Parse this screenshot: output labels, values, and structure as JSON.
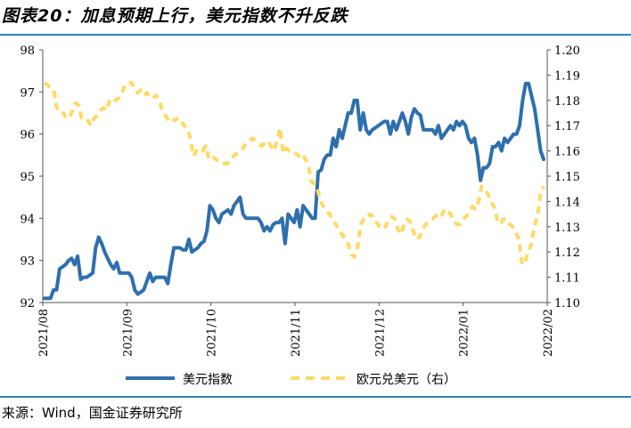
{
  "title": "图表20：加息预期上行，美元指数不升反跌",
  "source": "来源：Wind，国金证券研究所",
  "chart_data": {
    "type": "line",
    "x_ticks": [
      "2021/08",
      "2021/09",
      "2021/10",
      "2021/11",
      "2021/12",
      "2022/01",
      "2022/02"
    ],
    "left_axis": {
      "ylim": [
        92,
        98
      ],
      "ticks": [
        "98",
        "97",
        "96",
        "95",
        "94",
        "93",
        "92"
      ]
    },
    "right_axis": {
      "ylim": [
        1.1,
        1.2
      ],
      "ticks": [
        "1.20",
        "1.19",
        "1.18",
        "1.17",
        "1.16",
        "1.15",
        "1.14",
        "1.13",
        "1.12",
        "1.11",
        "1.10"
      ]
    },
    "grid": false,
    "legend_position": "bottom",
    "series": [
      {
        "name": "美元指数",
        "axis": "left",
        "color": "#2e6fad",
        "style": "solid",
        "values": [
          92.1,
          92.1,
          92.1,
          92.3,
          92.3,
          92.8,
          92.85,
          92.9,
          93.0,
          93.05,
          92.9,
          93.1,
          92.55,
          92.6,
          92.6,
          92.65,
          92.7,
          93.3,
          93.55,
          93.4,
          93.2,
          93.05,
          92.9,
          92.8,
          92.95,
          92.7,
          92.7,
          92.7,
          92.7,
          92.6,
          92.3,
          92.2,
          92.25,
          92.3,
          92.5,
          92.7,
          92.5,
          92.6,
          92.6,
          92.6,
          92.6,
          92.45,
          92.9,
          93.3,
          93.3,
          93.3,
          93.25,
          93.25,
          93.5,
          93.2,
          93.25,
          93.3,
          93.4,
          93.45,
          93.7,
          94.3,
          94.2,
          94.0,
          93.9,
          94.1,
          94.15,
          94.2,
          94.1,
          94.3,
          94.4,
          94.5,
          94.1,
          94.0,
          94.0,
          94.0,
          94.0,
          94.0,
          93.9,
          93.7,
          93.8,
          93.7,
          93.85,
          93.9,
          93.9,
          94.0,
          93.4,
          94.1,
          94.0,
          93.9,
          94.2,
          93.8,
          94.3,
          94.2,
          94.1,
          94.0,
          94.0,
          95.1,
          95.15,
          95.4,
          95.5,
          95.5,
          95.9,
          95.7,
          96.1,
          95.9,
          96.2,
          96.5,
          96.5,
          96.8,
          96.8,
          96.1,
          96.5,
          96.1,
          96.0,
          96.1,
          96.15,
          96.2,
          96.25,
          96.3,
          96.3,
          96.0,
          96.3,
          96.1,
          96.3,
          96.5,
          96.3,
          96.0,
          96.4,
          96.6,
          96.5,
          96.45,
          96.1,
          96.1,
          96.1,
          96.1,
          96.0,
          96.2,
          95.9,
          96.0,
          96.1,
          96.2,
          96.1,
          96.3,
          96.2,
          96.3,
          96.2,
          95.9,
          95.8,
          95.9,
          95.5,
          94.9,
          95.2,
          95.2,
          95.3,
          95.7,
          95.7,
          95.8,
          95.6,
          95.9,
          95.8,
          95.9,
          96.0,
          96.0,
          96.2,
          96.8,
          97.2,
          97.2,
          96.9,
          96.6,
          96.1,
          95.6,
          95.4
        ]
      },
      {
        "name": "欧元兑美元（右）",
        "axis": "right",
        "color": "#ffd965",
        "style": "dashed",
        "values": [
          1.187,
          1.186,
          1.185,
          1.184,
          1.177,
          1.175,
          1.175,
          1.173,
          1.173,
          1.176,
          1.179,
          1.178,
          1.173,
          1.173,
          1.172,
          1.17,
          1.173,
          1.174,
          1.176,
          1.177,
          1.176,
          1.18,
          1.181,
          1.18,
          1.181,
          1.183,
          1.186,
          1.187,
          1.187,
          1.185,
          1.183,
          1.184,
          1.182,
          1.183,
          1.181,
          1.181,
          1.182,
          1.18,
          1.176,
          1.174,
          1.172,
          1.173,
          1.172,
          1.173,
          1.172,
          1.17,
          1.169,
          1.165,
          1.158,
          1.16,
          1.161,
          1.16,
          1.162,
          1.157,
          1.158,
          1.157,
          1.156,
          1.155,
          1.155,
          1.155,
          1.156,
          1.158,
          1.159,
          1.16,
          1.161,
          1.163,
          1.164,
          1.165,
          1.164,
          1.163,
          1.162,
          1.163,
          1.164,
          1.162,
          1.16,
          1.164,
          1.169,
          1.159,
          1.161,
          1.16,
          1.16,
          1.159,
          1.158,
          1.159,
          1.157,
          1.155,
          1.148,
          1.147,
          1.145,
          1.14,
          1.138,
          1.136,
          1.135,
          1.132,
          1.131,
          1.128,
          1.127,
          1.125,
          1.123,
          1.119,
          1.118,
          1.122,
          1.131,
          1.133,
          1.133,
          1.135,
          1.134,
          1.132,
          1.13,
          1.129,
          1.13,
          1.133,
          1.134,
          1.133,
          1.129,
          1.127,
          1.131,
          1.133,
          1.132,
          1.128,
          1.125,
          1.126,
          1.129,
          1.131,
          1.132,
          1.133,
          1.134,
          1.135,
          1.134,
          1.137,
          1.136,
          1.135,
          1.132,
          1.131,
          1.131,
          1.133,
          1.134,
          1.136,
          1.138,
          1.137,
          1.14,
          1.146,
          1.145,
          1.143,
          1.14,
          1.138,
          1.133,
          1.131,
          1.133,
          1.133,
          1.131,
          1.13,
          1.128,
          1.125,
          1.115,
          1.116,
          1.12,
          1.123,
          1.13,
          1.134,
          1.143,
          1.146
        ]
      }
    ]
  }
}
